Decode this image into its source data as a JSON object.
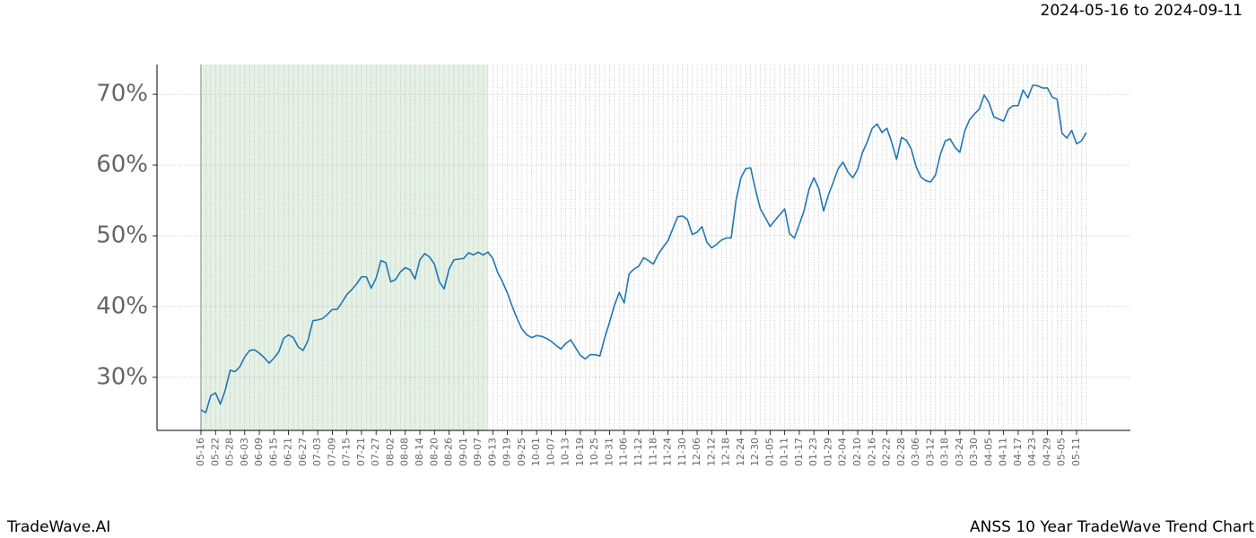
{
  "chart_data": {
    "type": "line",
    "subtitle": "2024-05-16 to 2024-09-11",
    "footer_left": "TradeWave.AI",
    "footer_right": "ANSS 10 Year TradeWave Trend Chart",
    "categories": [
      "05-16",
      null,
      null,
      "05-22",
      null,
      null,
      "05-28",
      null,
      null,
      "06-03",
      null,
      null,
      "06-09",
      null,
      null,
      "06-15",
      null,
      null,
      "06-21",
      null,
      null,
      "06-27",
      null,
      null,
      "07-03",
      null,
      null,
      "07-09",
      null,
      null,
      "07-15",
      null,
      null,
      "07-21",
      null,
      null,
      "07-27",
      null,
      null,
      "08-02",
      null,
      null,
      "08-08",
      null,
      null,
      "08-14",
      null,
      null,
      "08-20",
      null,
      null,
      "08-26",
      null,
      null,
      "09-01",
      null,
      null,
      "09-07",
      null,
      null,
      "09-13",
      null,
      null,
      "09-19",
      null,
      null,
      "09-25",
      null,
      null,
      "10-01",
      null,
      null,
      "10-07",
      null,
      null,
      "10-13",
      null,
      null,
      "10-19",
      null,
      null,
      "10-25",
      null,
      null,
      "10-31",
      null,
      null,
      "11-06",
      null,
      null,
      "11-12",
      null,
      null,
      "11-18",
      null,
      null,
      "11-24",
      null,
      null,
      "11-30",
      null,
      null,
      "12-06",
      null,
      null,
      "12-12",
      null,
      null,
      "12-18",
      null,
      null,
      "12-24",
      null,
      null,
      "12-30",
      null,
      null,
      "01-05",
      null,
      null,
      "01-11",
      null,
      null,
      "01-17",
      null,
      null,
      "01-23",
      null,
      null,
      "01-29",
      null,
      null,
      "02-04",
      null,
      null,
      "02-10",
      null,
      null,
      "02-16",
      null,
      null,
      "02-22",
      null,
      null,
      "02-28",
      null,
      null,
      "03-06",
      null,
      null,
      "03-12",
      null,
      null,
      "03-18",
      null,
      null,
      "03-24",
      null,
      null,
      "03-30",
      null,
      null,
      "04-05",
      null,
      null,
      "04-11",
      null,
      null,
      "04-17",
      null,
      null,
      "04-23",
      null,
      null,
      "04-29",
      null,
      null,
      "05-05",
      null,
      null,
      "05-11",
      null,
      null
    ],
    "values": [
      25.4,
      25.0,
      27.4,
      27.8,
      26.2,
      28.2,
      31.0,
      30.8,
      31.5,
      32.9,
      33.8,
      33.9,
      33.4,
      32.8,
      32.0,
      32.7,
      33.6,
      35.5,
      36.0,
      35.6,
      34.3,
      33.8,
      35.2,
      38.0,
      38.1,
      38.3,
      38.9,
      39.6,
      39.6,
      40.6,
      41.7,
      42.4,
      43.2,
      44.2,
      44.2,
      42.6,
      44.0,
      46.5,
      46.2,
      43.5,
      43.8,
      44.9,
      45.5,
      45.2,
      43.9,
      46.6,
      47.5,
      47.0,
      46.0,
      43.5,
      42.5,
      45.3,
      46.6,
      46.7,
      46.8,
      47.6,
      47.3,
      47.7,
      47.3,
      47.7,
      46.8,
      44.8,
      43.5,
      41.9,
      40.0,
      38.3,
      36.8,
      36.0,
      35.6,
      35.9,
      35.8,
      35.5,
      35.1,
      34.5,
      34.0,
      34.8,
      35.3,
      34.2,
      33.1,
      32.6,
      33.2,
      33.2,
      33.0,
      35.6,
      37.8,
      40.2,
      42.0,
      40.5,
      44.6,
      45.3,
      45.7,
      46.9,
      46.5,
      46.0,
      47.4,
      48.4,
      49.3,
      51.0,
      52.7,
      52.8,
      52.3,
      50.2,
      50.5,
      51.3,
      49.1,
      48.3,
      48.8,
      49.4,
      49.7,
      49.7,
      55.0,
      58.2,
      59.5,
      59.6,
      56.5,
      53.8,
      52.6,
      51.3,
      52.2,
      53.0,
      53.8,
      50.3,
      49.7,
      51.6,
      53.6,
      56.6,
      58.2,
      56.7,
      53.5,
      55.8,
      57.6,
      59.5,
      60.4,
      59.0,
      58.2,
      59.4,
      61.8,
      63.3,
      65.2,
      65.8,
      64.6,
      65.2,
      63.2,
      60.8,
      63.9,
      63.5,
      62.3,
      59.8,
      58.3,
      57.8,
      57.6,
      58.6,
      61.5,
      63.4,
      63.7,
      62.5,
      61.8,
      64.8,
      66.4,
      67.2,
      67.9,
      69.9,
      68.8,
      66.8,
      66.5,
      66.2,
      67.9,
      68.4,
      68.4,
      70.6,
      69.5,
      71.3,
      71.2,
      70.9,
      70.9,
      69.6,
      69.3,
      64.5,
      63.8,
      64.9,
      63.0,
      63.4,
      64.6
    ],
    "color": "#1f77b4",
    "shaded_categories": [
      0,
      59
    ],
    "shade_color": "#e6f1e6",
    "ylim": [
      22.5,
      74.2
    ],
    "yticks": [
      {
        "value": 30,
        "label": "30%"
      },
      {
        "value": 40,
        "label": "40%"
      },
      {
        "value": 50,
        "label": "50%"
      },
      {
        "value": 60,
        "label": "60%"
      },
      {
        "value": 70,
        "label": "70%"
      }
    ],
    "grid": true
  }
}
